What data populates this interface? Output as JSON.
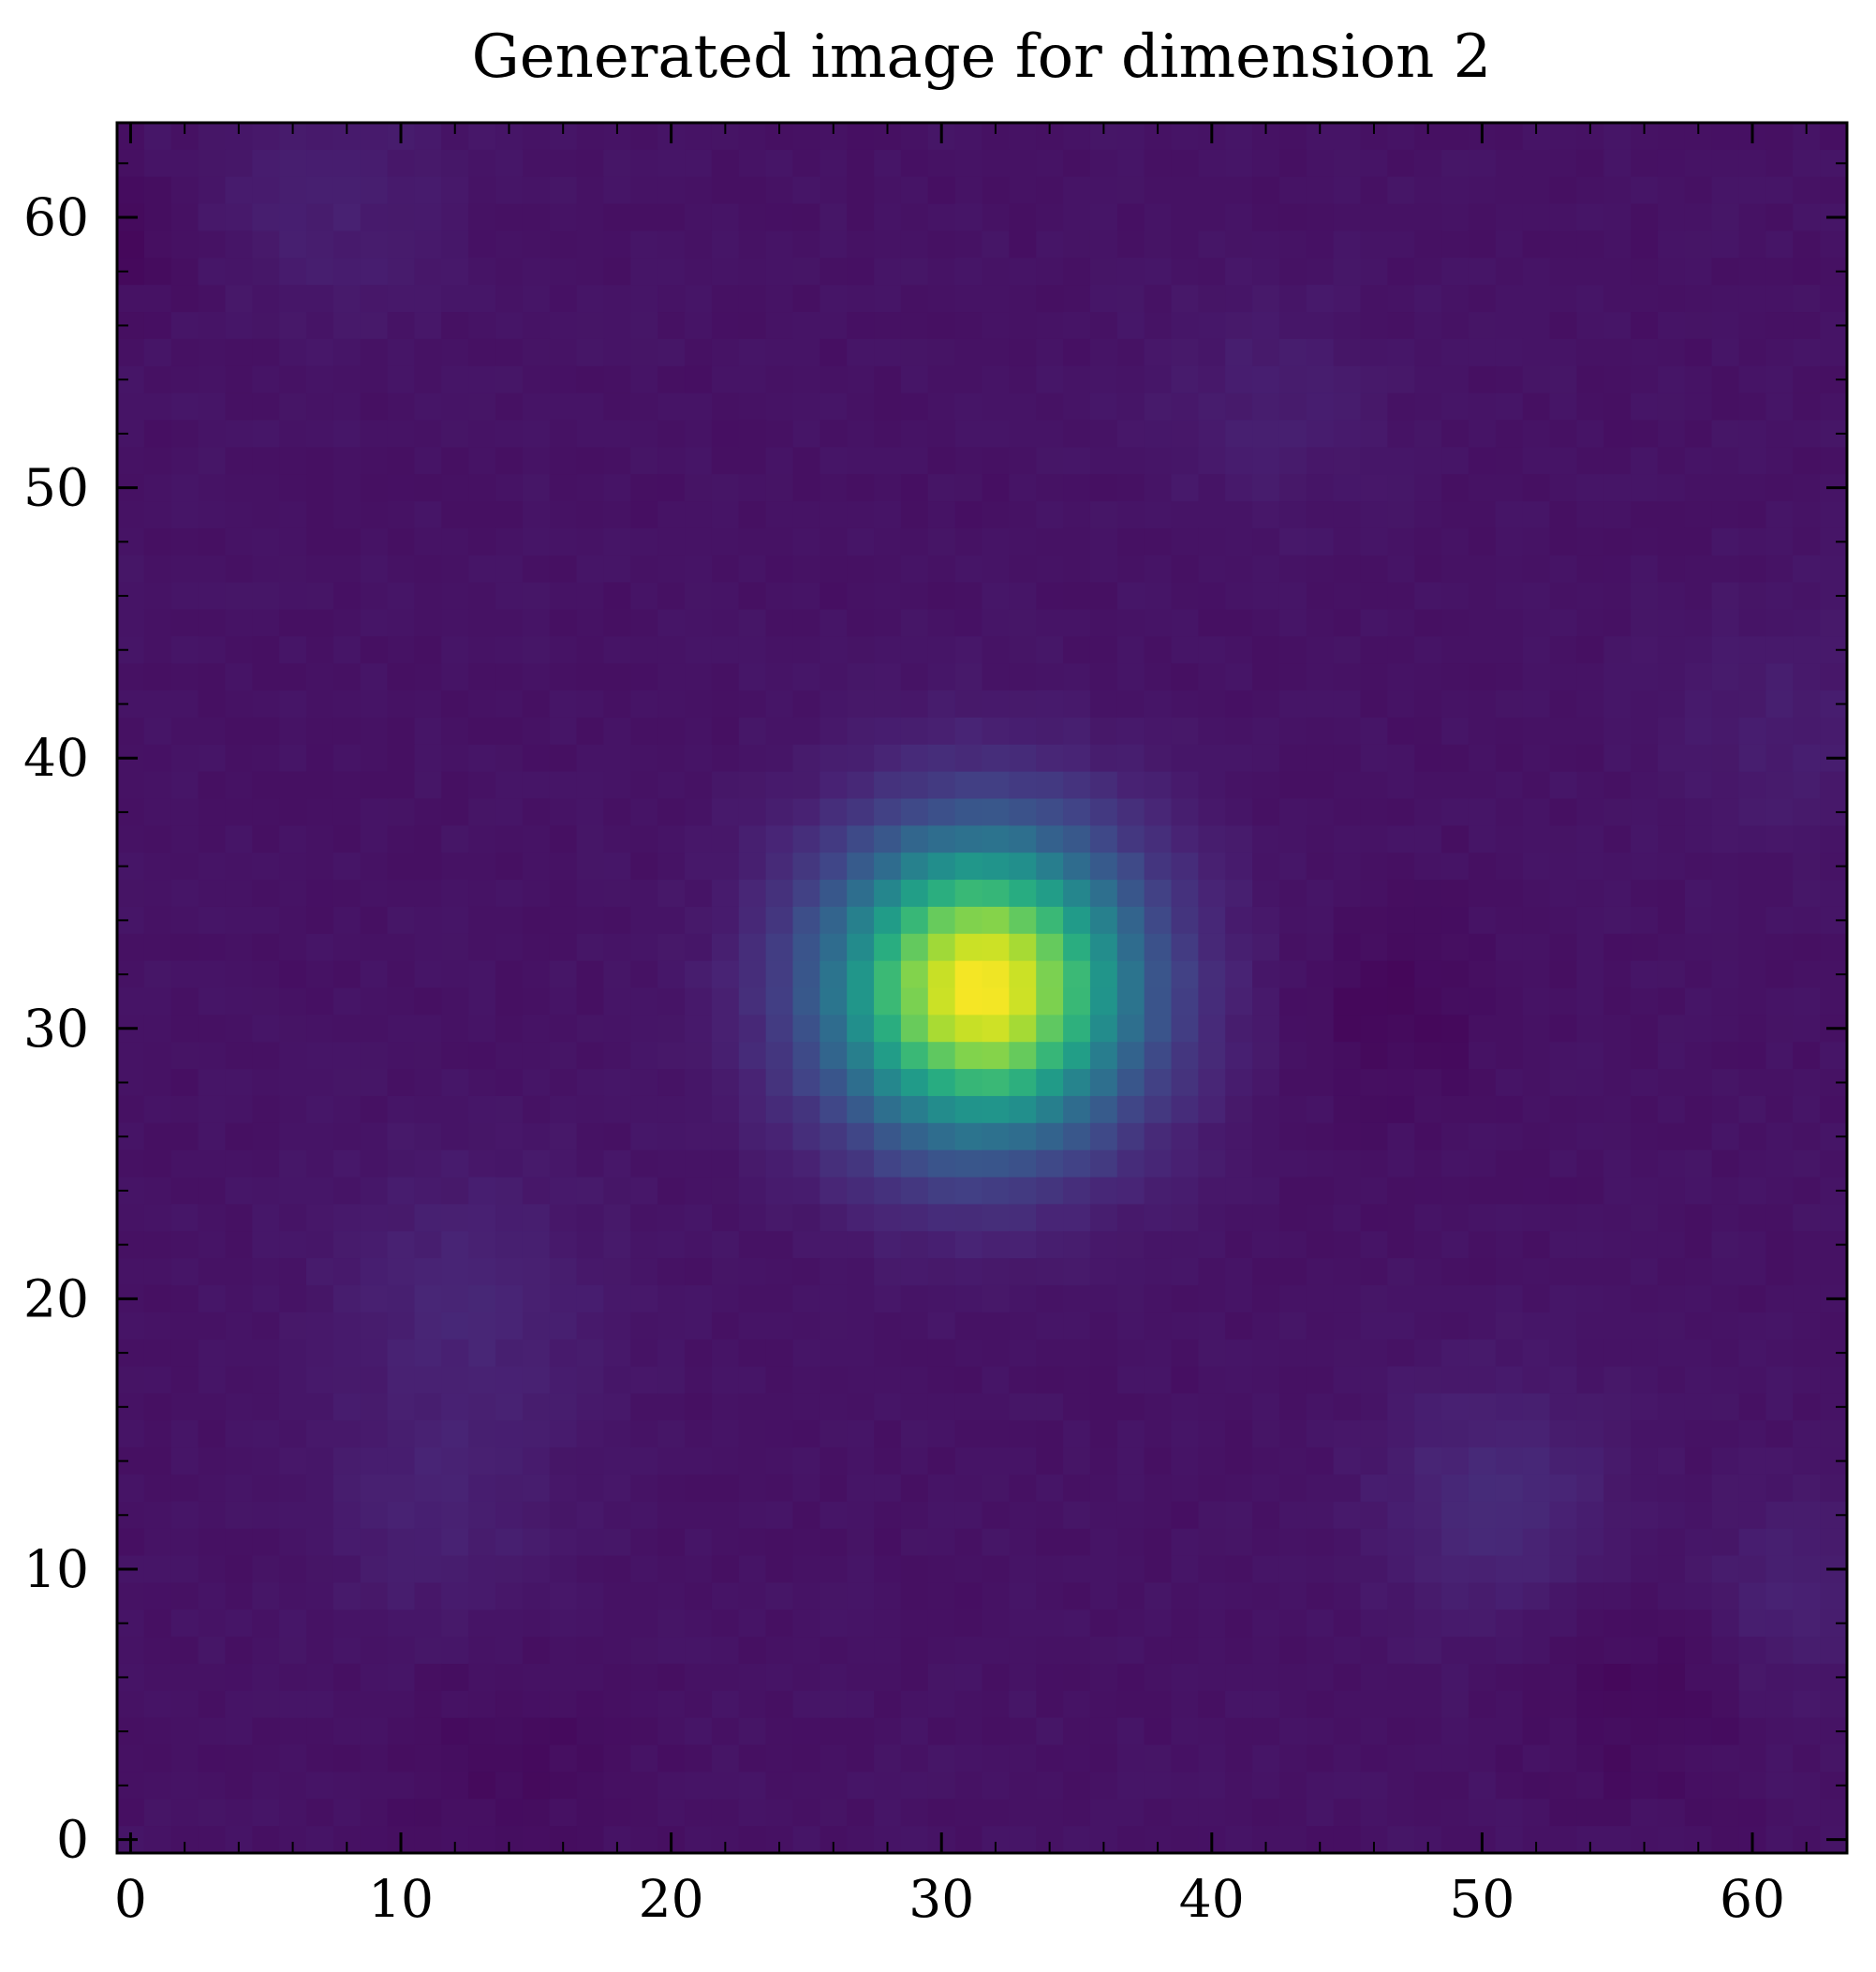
{
  "chart_data": {
    "type": "heatmap",
    "title": "Generated image for dimension 2",
    "xlabel": "",
    "ylabel": "",
    "grid": false,
    "colormap": "viridis",
    "shape": [
      64,
      64
    ],
    "xlim": [
      -0.5,
      63.5
    ],
    "ylim": [
      63.5,
      -0.5
    ],
    "x_ticks": [
      0,
      10,
      20,
      30,
      40,
      50,
      60
    ],
    "x_tick_labels": [
      "0",
      "10",
      "20",
      "30",
      "40",
      "50",
      "60"
    ],
    "y_ticks": [
      0,
      10,
      20,
      30,
      40,
      50,
      60
    ],
    "y_tick_labels": [
      "0",
      "10",
      "20",
      "30",
      "40",
      "50",
      "60"
    ],
    "minor_tick_step": 2,
    "value_range": [
      0,
      1
    ],
    "background_level": 0.05,
    "features": [
      {
        "kind": "peak",
        "center_col": 31.5,
        "center_row": 31.5,
        "sigma": 3.8,
        "amplitude": 0.95
      },
      {
        "kind": "blob",
        "center_col": 50.5,
        "center_row": 50.5,
        "sigma": 3.0,
        "amplitude": 0.07
      },
      {
        "kind": "blob",
        "center_col": 12.5,
        "center_row": 43.0,
        "sigma": 3.5,
        "amplitude": 0.05
      },
      {
        "kind": "blob",
        "center_col": 11.5,
        "center_row": 51.0,
        "sigma": 3.0,
        "amplitude": 0.04
      },
      {
        "kind": "blob",
        "center_col": 7.5,
        "center_row": 2.5,
        "sigma": 3.0,
        "amplitude": 0.035
      },
      {
        "kind": "blob",
        "center_col": 61.5,
        "center_row": 54.0,
        "sigma": 2.5,
        "amplitude": 0.04
      },
      {
        "kind": "blob",
        "center_col": 61.0,
        "center_row": 22.0,
        "sigma": 3.0,
        "amplitude": 0.03
      },
      {
        "kind": "blob",
        "center_col": 42.0,
        "center_row": 10.0,
        "sigma": 3.0,
        "amplitude": 0.03
      },
      {
        "kind": "dip",
        "center_col": 46.5,
        "center_row": 32.5,
        "sigma": 2.5,
        "amplitude": -0.03
      },
      {
        "kind": "dip",
        "center_col": 56.0,
        "center_row": 57.5,
        "sigma": 3.0,
        "amplitude": -0.025
      },
      {
        "kind": "dip",
        "center_col": 14.0,
        "center_row": 60.0,
        "sigma": 3.0,
        "amplitude": -0.02
      },
      {
        "kind": "dip",
        "center_col": 0.0,
        "center_row": 4.0,
        "sigma": 1.5,
        "amplitude": -0.025
      }
    ]
  }
}
